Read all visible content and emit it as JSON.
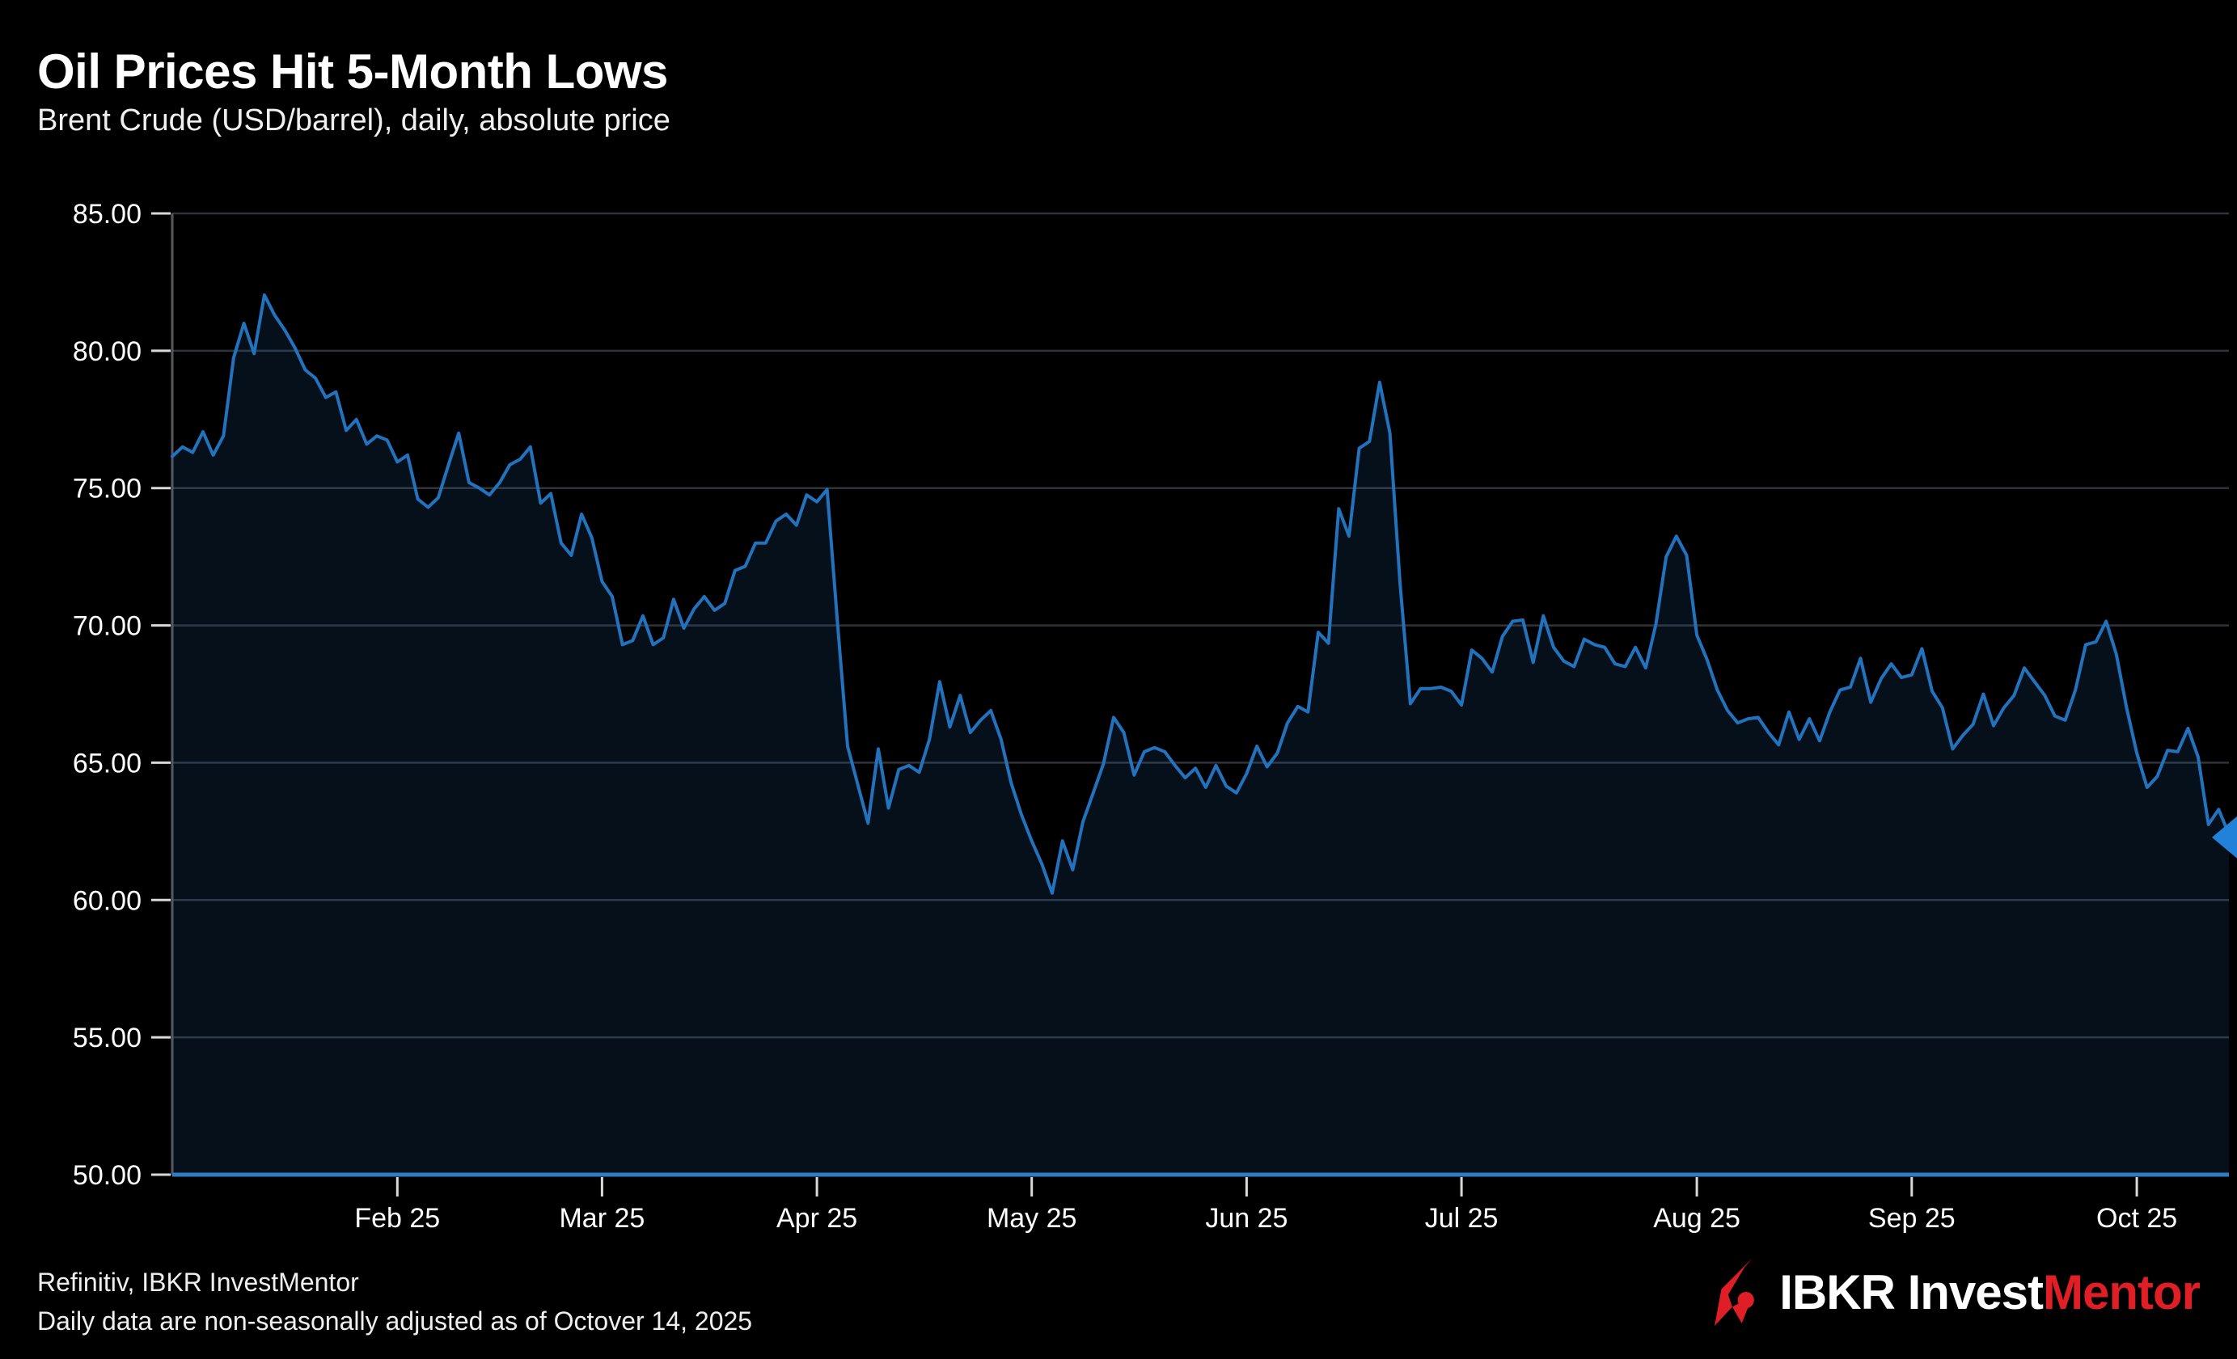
{
  "chart_data": {
    "type": "area",
    "title": "Oil Prices Hit 5-Month Lows",
    "subtitle": "Brent Crude (USD/barrel), daily, absolute price",
    "unit": "USD/barrel",
    "frequency": "daily",
    "year": "2025",
    "ylim": [
      50,
      85
    ],
    "grid": true,
    "legend": "none",
    "y_tick_values": [
      85,
      80,
      75,
      70,
      65,
      60,
      55,
      50
    ],
    "y_tick_labels": [
      "85.00",
      "80.00",
      "75.00",
      "70.00",
      "65.00",
      "60.00",
      "55.00",
      "50.00"
    ],
    "x_tick_labels": [
      "Feb 25",
      "Mar 25",
      "Apr 25",
      "May 25",
      "Jun 25",
      "Jul 25",
      "Aug 25",
      "Sep 25",
      "Oct 25"
    ],
    "x_tick_indices": [
      22,
      42,
      63,
      84,
      105,
      126,
      149,
      170,
      192
    ],
    "end_marker": {
      "shape": "left-triangle",
      "at_last_point": true
    },
    "series": [
      {
        "name": "Brent Crude (USD/barrel)",
        "dates": [
          "01-02",
          "01-03",
          "01-06",
          "01-07",
          "01-08",
          "01-09",
          "01-10",
          "01-13",
          "01-14",
          "01-15",
          "01-16",
          "01-17",
          "01-20",
          "01-21",
          "01-22",
          "01-23",
          "01-24",
          "01-27",
          "01-28",
          "01-29",
          "01-30",
          "01-31",
          "02-03",
          "02-04",
          "02-05",
          "02-06",
          "02-07",
          "02-10",
          "02-11",
          "02-12",
          "02-13",
          "02-14",
          "02-17",
          "02-18",
          "02-19",
          "02-20",
          "02-21",
          "02-24",
          "02-25",
          "02-26",
          "02-27",
          "02-28",
          "03-03",
          "03-04",
          "03-05",
          "03-06",
          "03-07",
          "03-10",
          "03-11",
          "03-12",
          "03-13",
          "03-14",
          "03-17",
          "03-18",
          "03-19",
          "03-20",
          "03-21",
          "03-24",
          "03-25",
          "03-26",
          "03-27",
          "03-28",
          "03-31",
          "04-01",
          "04-02",
          "04-03",
          "04-04",
          "04-07",
          "04-08",
          "04-09",
          "04-10",
          "04-11",
          "04-14",
          "04-15",
          "04-16",
          "04-17",
          "04-21",
          "04-22",
          "04-23",
          "04-24",
          "04-25",
          "04-28",
          "04-29",
          "04-30",
          "05-01",
          "05-02",
          "05-05",
          "05-06",
          "05-07",
          "05-08",
          "05-09",
          "05-12",
          "05-13",
          "05-14",
          "05-15",
          "05-16",
          "05-19",
          "05-20",
          "05-21",
          "05-22",
          "05-23",
          "05-27",
          "05-28",
          "05-29",
          "05-30",
          "06-02",
          "06-03",
          "06-04",
          "06-05",
          "06-06",
          "06-09",
          "06-10",
          "06-11",
          "06-12",
          "06-13",
          "06-16",
          "06-17",
          "06-18",
          "06-19",
          "06-20",
          "06-23",
          "06-24",
          "06-25",
          "06-26",
          "06-27",
          "06-30",
          "07-01",
          "07-02",
          "07-03",
          "07-04",
          "07-07",
          "07-08",
          "07-09",
          "07-10",
          "07-11",
          "07-14",
          "07-15",
          "07-16",
          "07-17",
          "07-18",
          "07-21",
          "07-22",
          "07-23",
          "07-24",
          "07-25",
          "07-28",
          "07-29",
          "07-30",
          "07-31",
          "08-01",
          "08-04",
          "08-05",
          "08-06",
          "08-07",
          "08-08",
          "08-11",
          "08-12",
          "08-13",
          "08-14",
          "08-15",
          "08-18",
          "08-19",
          "08-20",
          "08-21",
          "08-22",
          "08-25",
          "08-26",
          "08-27",
          "08-28",
          "08-29",
          "09-01",
          "09-02",
          "09-03",
          "09-04",
          "09-05",
          "09-08",
          "09-09",
          "09-10",
          "09-11",
          "09-12",
          "09-15",
          "09-16",
          "09-17",
          "09-18",
          "09-19",
          "09-22",
          "09-23",
          "09-24",
          "09-25",
          "09-26",
          "09-29",
          "09-30",
          "10-01",
          "10-02",
          "10-03",
          "10-06",
          "10-07",
          "10-08",
          "10-09",
          "10-10",
          "10-13",
          "10-14"
        ],
        "values": [
          76.15,
          76.5,
          76.3,
          77.05,
          76.2,
          76.9,
          79.75,
          81.0,
          79.9,
          82.03,
          81.3,
          80.75,
          80.1,
          79.3,
          79.0,
          78.3,
          78.5,
          77.1,
          77.5,
          76.6,
          76.9,
          76.75,
          75.95,
          76.2,
          74.6,
          74.3,
          74.65,
          75.85,
          77.0,
          75.2,
          75.0,
          74.75,
          75.2,
          75.85,
          76.05,
          76.5,
          74.45,
          74.8,
          73.0,
          72.55,
          74.05,
          73.2,
          71.6,
          71.05,
          69.3,
          69.45,
          70.35,
          69.3,
          69.55,
          70.95,
          69.9,
          70.6,
          71.05,
          70.55,
          70.8,
          72.0,
          72.15,
          73.0,
          73.0,
          73.8,
          74.05,
          73.65,
          74.75,
          74.5,
          74.95,
          70.15,
          65.6,
          64.2,
          62.8,
          65.5,
          63.35,
          64.75,
          64.9,
          64.65,
          65.85,
          67.95,
          66.3,
          67.45,
          66.1,
          66.55,
          66.9,
          65.85,
          64.25,
          63.1,
          62.15,
          61.3,
          60.25,
          62.15,
          61.1,
          62.85,
          63.9,
          64.95,
          66.65,
          66.1,
          64.55,
          65.4,
          65.55,
          65.4,
          64.9,
          64.45,
          64.8,
          64.1,
          64.9,
          64.15,
          63.9,
          64.6,
          65.6,
          64.85,
          65.35,
          66.45,
          67.05,
          66.85,
          69.75,
          69.35,
          74.25,
          73.25,
          76.45,
          76.7,
          78.85,
          77.0,
          71.5,
          67.15,
          67.7,
          67.7,
          67.75,
          67.6,
          67.1,
          69.1,
          68.8,
          68.3,
          69.6,
          70.15,
          70.2,
          68.65,
          70.35,
          69.2,
          68.7,
          68.5,
          69.5,
          69.3,
          69.2,
          68.6,
          68.5,
          69.2,
          68.45,
          70.05,
          72.5,
          73.25,
          72.55,
          69.65,
          68.75,
          67.65,
          66.9,
          66.45,
          66.6,
          66.65,
          66.1,
          65.65,
          66.85,
          65.85,
          66.6,
          65.8,
          66.85,
          67.65,
          67.75,
          68.8,
          67.2,
          68.05,
          68.6,
          68.1,
          68.2,
          69.15,
          67.6,
          67.0,
          65.5,
          66.0,
          66.4,
          67.5,
          66.35,
          67.0,
          67.45,
          68.45,
          67.95,
          67.45,
          66.7,
          66.55,
          67.65,
          69.3,
          69.4,
          70.15,
          68.95,
          67.0,
          65.35,
          64.1,
          64.5,
          65.45,
          65.4,
          66.25,
          65.2,
          62.75,
          63.3,
          62.4
        ]
      }
    ]
  },
  "footer": {
    "source": "Refinitiv, IBKR InvestMentor",
    "note": "Daily data are non-seasonally adjusted as of Octover 14, 2025"
  },
  "logo": {
    "icon": "ibkr-red-mark",
    "text_white": "IBKR Invest",
    "text_red": "Mentor"
  },
  "colors": {
    "background": "#000000",
    "line": "#2272bd",
    "area_fill": "rgba(33,113,189,0.14)",
    "baseline": "#2e7cc3",
    "gridline": "#303338",
    "axis_line": "#55595e",
    "tick": "#d9d9d9",
    "text": "#ffffff",
    "logo_red": "#e01e26",
    "end_marker": "#2282d9"
  }
}
